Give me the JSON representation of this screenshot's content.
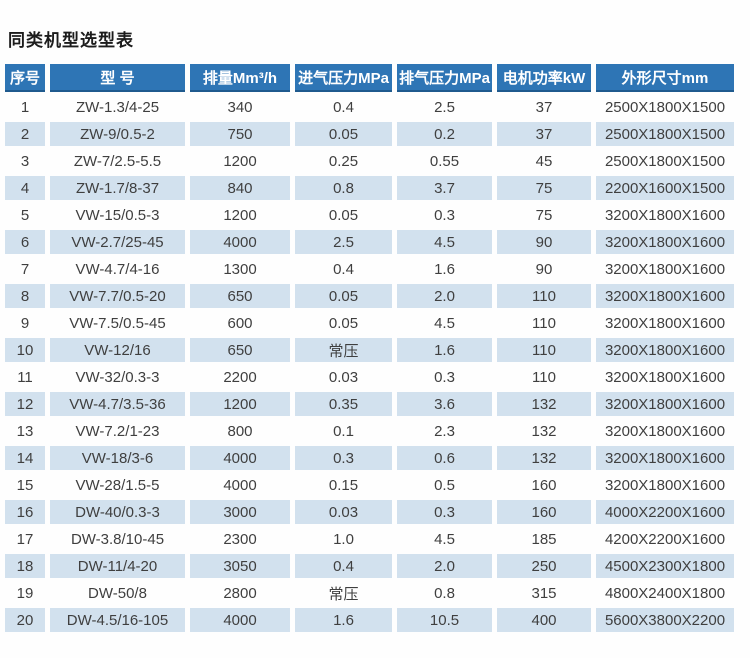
{
  "page": {
    "title": "同类机型选型表"
  },
  "colors": {
    "header_bg": "#2e75b5",
    "header_border": "#1f5a8e",
    "stripe": "#d2e1ee",
    "header_text": "#ffffff",
    "body_text": "#3f3f3f",
    "title_text": "#1c1c1c"
  },
  "chart_data": {
    "type": "table",
    "title": "同类机型选型表",
    "columns": [
      "序号",
      "型  号",
      "排量Mm³/h",
      "进气压力MPa",
      "排气压力MPa",
      "电机功率kW",
      "外形尺寸mm"
    ],
    "rows": [
      [
        "1",
        "ZW-1.3/4-25",
        "340",
        "0.4",
        "2.5",
        "37",
        "2500X1800X1500"
      ],
      [
        "2",
        "ZW-9/0.5-2",
        "750",
        "0.05",
        "0.2",
        "37",
        "2500X1800X1500"
      ],
      [
        "3",
        "ZW-7/2.5-5.5",
        "1200",
        "0.25",
        "0.55",
        "45",
        "2500X1800X1500"
      ],
      [
        "4",
        "ZW-1.7/8-37",
        "840",
        "0.8",
        "3.7",
        "75",
        "2200X1600X1500"
      ],
      [
        "5",
        "VW-15/0.5-3",
        "1200",
        "0.05",
        "0.3",
        "75",
        "3200X1800X1600"
      ],
      [
        "6",
        "VW-2.7/25-45",
        "4000",
        "2.5",
        "4.5",
        "90",
        "3200X1800X1600"
      ],
      [
        "7",
        "VW-4.7/4-16",
        "1300",
        "0.4",
        "1.6",
        "90",
        "3200X1800X1600"
      ],
      [
        "8",
        "VW-7.7/0.5-20",
        "650",
        "0.05",
        "2.0",
        "110",
        "3200X1800X1600"
      ],
      [
        "9",
        "VW-7.5/0.5-45",
        "600",
        "0.05",
        "4.5",
        "110",
        "3200X1800X1600"
      ],
      [
        "10",
        "VW-12/16",
        "650",
        "常压",
        "1.6",
        "110",
        "3200X1800X1600"
      ],
      [
        "11",
        "VW-32/0.3-3",
        "2200",
        "0.03",
        "0.3",
        "110",
        "3200X1800X1600"
      ],
      [
        "12",
        "VW-4.7/3.5-36",
        "1200",
        "0.35",
        "3.6",
        "132",
        "3200X1800X1600"
      ],
      [
        "13",
        "VW-7.2/1-23",
        "800",
        "0.1",
        "2.3",
        "132",
        "3200X1800X1600"
      ],
      [
        "14",
        "VW-18/3-6",
        "4000",
        "0.3",
        "0.6",
        "132",
        "3200X1800X1600"
      ],
      [
        "15",
        "VW-28/1.5-5",
        "4000",
        "0.15",
        "0.5",
        "160",
        "3200X1800X1600"
      ],
      [
        "16",
        "DW-40/0.3-3",
        "3000",
        "0.03",
        "0.3",
        "160",
        "4000X2200X1600"
      ],
      [
        "17",
        "DW-3.8/10-45",
        "2300",
        "1.0",
        "4.5",
        "185",
        "4200X2200X1600"
      ],
      [
        "18",
        "DW-11/4-20",
        "3050",
        "0.4",
        "2.0",
        "250",
        "4500X2300X1800"
      ],
      [
        "19",
        "DW-50/8",
        "2800",
        "常压",
        "0.8",
        "315",
        "4800X2400X1800"
      ],
      [
        "20",
        "DW-4.5/16-105",
        "4000",
        "1.6",
        "10.5",
        "400",
        "5600X3800X2200"
      ]
    ]
  }
}
